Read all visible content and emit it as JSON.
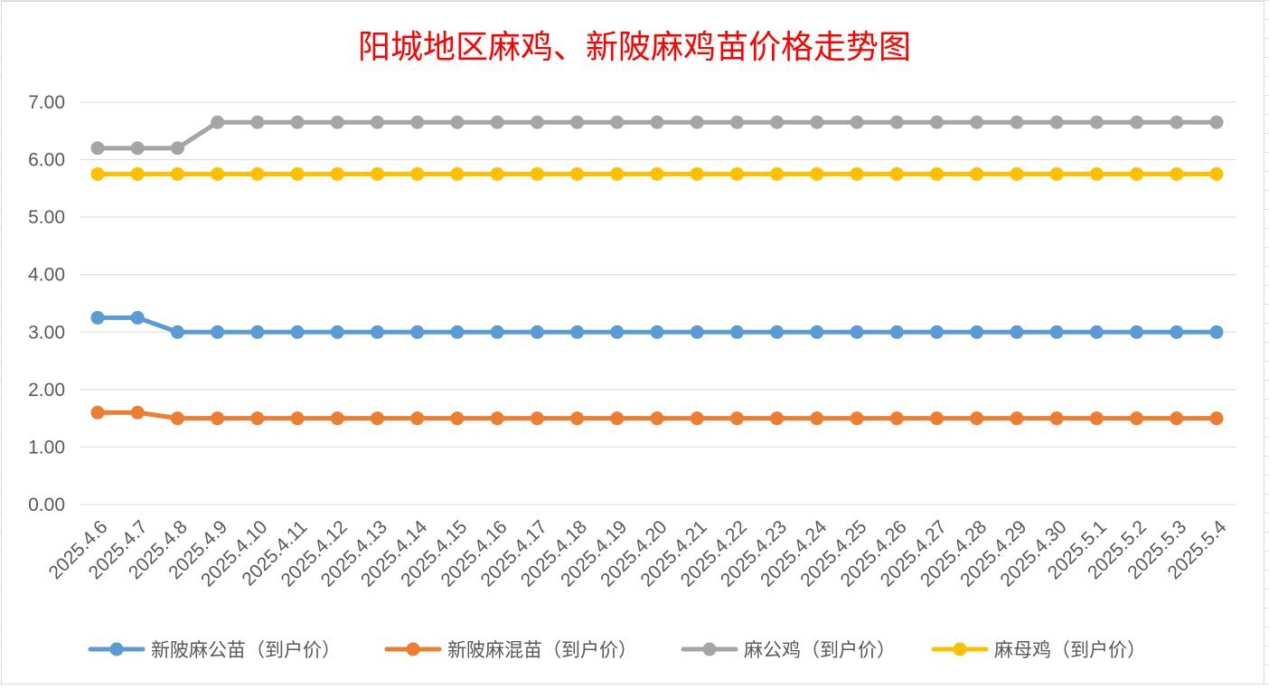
{
  "chart_data": {
    "type": "line",
    "title": "阳城地区麻鸡、新陂麻鸡苗价格走势图",
    "xlabel": "",
    "ylabel": "",
    "ylim": [
      0,
      7
    ],
    "yticks": [
      "0.00",
      "1.00",
      "2.00",
      "3.00",
      "4.00",
      "5.00",
      "6.00",
      "7.00"
    ],
    "grid": true,
    "legend_position": "bottom",
    "categories": [
      "2025.4.6",
      "2025.4.7",
      "2025.4.8",
      "2025.4.9",
      "2025.4.10",
      "2025.4.11",
      "2025.4.12",
      "2025.4.13",
      "2025.4.14",
      "2025.4.15",
      "2025.4.16",
      "2025.4.17",
      "2025.4.18",
      "2025.4.19",
      "2025.4.20",
      "2025.4.21",
      "2025.4.22",
      "2025.4.23",
      "2025.4.24",
      "2025.4.25",
      "2025.4.26",
      "2025.4.27",
      "2025.4.28",
      "2025.4.29",
      "2025.4.30",
      "2025.5.1",
      "2025.5.2",
      "2025.5.3",
      "2025.5.4"
    ],
    "series": [
      {
        "name": "新陂麻公苗（到户价）",
        "color": "#5b9bd5",
        "values": [
          3.25,
          3.25,
          3.0,
          3.0,
          3.0,
          3.0,
          3.0,
          3.0,
          3.0,
          3.0,
          3.0,
          3.0,
          3.0,
          3.0,
          3.0,
          3.0,
          3.0,
          3.0,
          3.0,
          3.0,
          3.0,
          3.0,
          3.0,
          3.0,
          3.0,
          3.0,
          3.0,
          3.0,
          3.0
        ]
      },
      {
        "name": "新陂麻混苗（到户价）",
        "color": "#ed7d31",
        "values": [
          1.6,
          1.6,
          1.5,
          1.5,
          1.5,
          1.5,
          1.5,
          1.5,
          1.5,
          1.5,
          1.5,
          1.5,
          1.5,
          1.5,
          1.5,
          1.5,
          1.5,
          1.5,
          1.5,
          1.5,
          1.5,
          1.5,
          1.5,
          1.5,
          1.5,
          1.5,
          1.5,
          1.5,
          1.5
        ]
      },
      {
        "name": "麻公鸡（到户价）",
        "color": "#a5a5a5",
        "values": [
          6.2,
          6.2,
          6.2,
          6.65,
          6.65,
          6.65,
          6.65,
          6.65,
          6.65,
          6.65,
          6.65,
          6.65,
          6.65,
          6.65,
          6.65,
          6.65,
          6.65,
          6.65,
          6.65,
          6.65,
          6.65,
          6.65,
          6.65,
          6.65,
          6.65,
          6.65,
          6.65,
          6.65,
          6.65
        ]
      },
      {
        "name": "麻母鸡（到户价）",
        "color": "#ffc000",
        "values": [
          5.75,
          5.75,
          5.75,
          5.75,
          5.75,
          5.75,
          5.75,
          5.75,
          5.75,
          5.75,
          5.75,
          5.75,
          5.75,
          5.75,
          5.75,
          5.75,
          5.75,
          5.75,
          5.75,
          5.75,
          5.75,
          5.75,
          5.75,
          5.75,
          5.75,
          5.75,
          5.75,
          5.75,
          5.75
        ]
      }
    ]
  }
}
